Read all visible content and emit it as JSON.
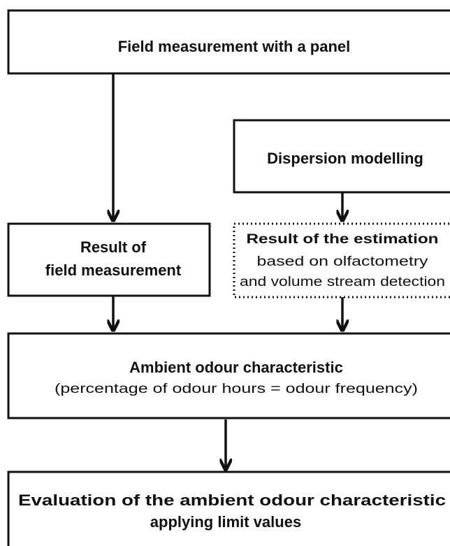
{
  "nodes": [
    {
      "lines": [
        "Field measurement with a panel"
      ]
    },
    {
      "lines": [
        "Dispersion modelling"
      ]
    },
    {
      "lines": [
        "Result of",
        "field measurement"
      ]
    },
    {
      "lines": [
        "Result of the estimation",
        "based on olfactometry",
        "and volume stream detection"
      ]
    },
    {
      "lines": [
        "Ambient odour characteristic",
        "(percentage of odour hours = odour frequency)"
      ]
    },
    {
      "lines": [
        "Evaluation of the ambient odour characteristic",
        "applying limit values"
      ]
    }
  ]
}
